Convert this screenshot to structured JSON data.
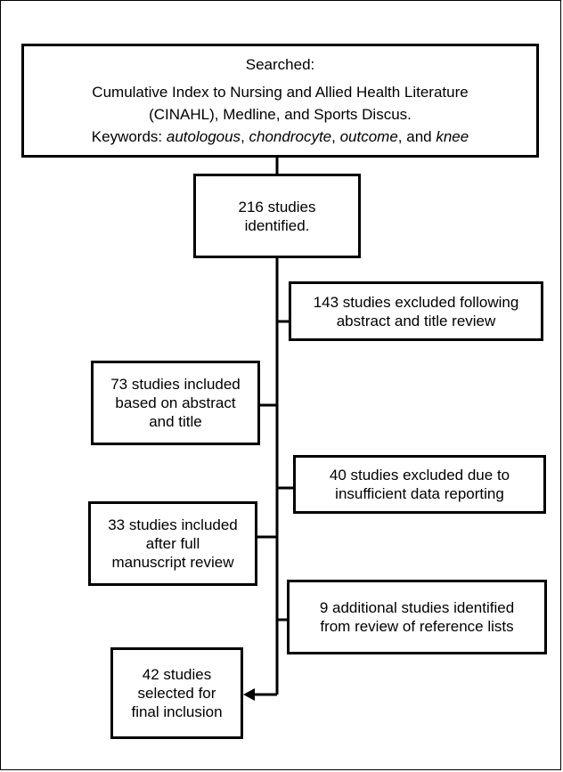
{
  "search_box": {
    "heading": "Searched:",
    "databases_line1": "Cumulative Index to Nursing and Allied Health Literature",
    "databases_line2": "(CINAHL), Medline, and Sports Discus.",
    "keywords_label": "Keywords: ",
    "keyword1": "autologous",
    "sep1": ", ",
    "keyword2": "chondrocyte",
    "sep2": ", ",
    "keyword3": "outcome",
    "sep3": ", and ",
    "keyword4": "knee"
  },
  "identified_box": {
    "line1": "216 studies",
    "line2": "identified."
  },
  "excluded_abstract_box": {
    "line1": "143 studies excluded following",
    "line2": "abstract and title review"
  },
  "included_abstract_box": {
    "line1": "73 studies included",
    "line2": "based on abstract",
    "line3": "and title"
  },
  "excluded_data_box": {
    "line1": "40 studies excluded due to",
    "line2": "insufficient data reporting"
  },
  "included_manuscript_box": {
    "line1": "33 studies included",
    "line2": "after full",
    "line3": "manuscript review"
  },
  "additional_box": {
    "line1": "9 additional studies identified",
    "line2": "from review of reference lists"
  },
  "final_box": {
    "line1": "42 studies",
    "line2": "selected for",
    "line3": "final inclusion"
  }
}
